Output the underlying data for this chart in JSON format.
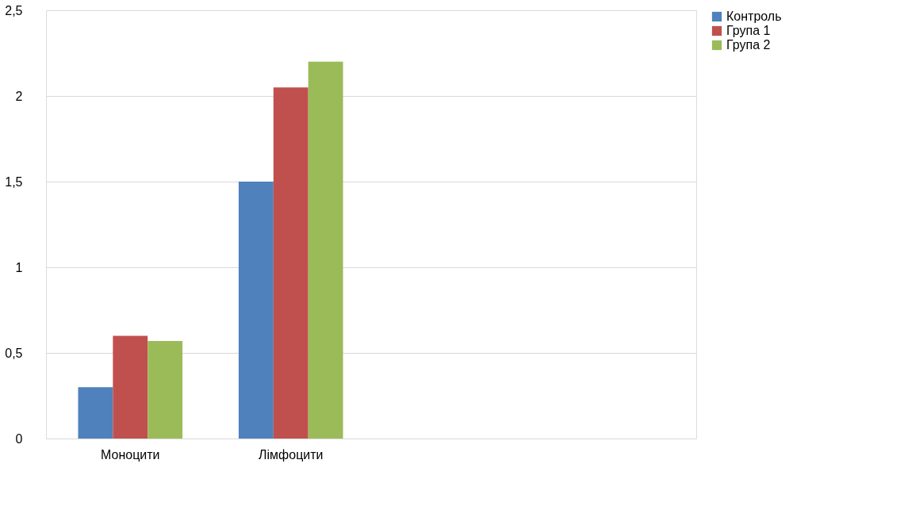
{
  "chart_data": {
    "type": "bar",
    "categories": [
      "Моноцити",
      "Лімфоцити",
      null,
      null
    ],
    "series": [
      {
        "name": "Контроль",
        "color": "#4f81bd",
        "values": [
          0.3,
          1.5,
          null,
          null
        ]
      },
      {
        "name": "Група 1",
        "color": "#c0504d",
        "values": [
          0.6,
          2.05,
          null,
          null
        ]
      },
      {
        "name": "Група 2",
        "color": "#9bbb59",
        "values": [
          0.57,
          2.2,
          null,
          null
        ]
      }
    ],
    "ylim": [
      0,
      2.5
    ],
    "yticks": [
      0,
      {
        "value": 0.5,
        "label": "0,5"
      },
      1,
      {
        "value": 1.5,
        "label": "1,5"
      },
      2,
      {
        "value": 2.5,
        "label": "2,5"
      }
    ],
    "grid": "y",
    "legend": "right"
  }
}
